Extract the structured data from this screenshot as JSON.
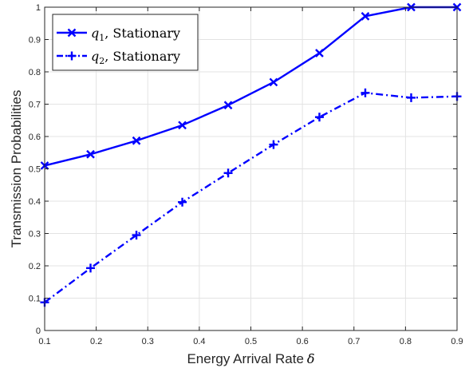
{
  "chart_data": {
    "type": "line",
    "xlabel": "Energy Arrival Rate",
    "xlabel_symbol": "δ",
    "ylabel": "Transmission Probabilities",
    "xlim": [
      0.1,
      0.9
    ],
    "ylim": [
      0,
      1
    ],
    "x_ticks": [
      "0.1",
      "0.2",
      "0.3",
      "0.4",
      "0.5",
      "0.6",
      "0.7",
      "0.8",
      "0.9"
    ],
    "y_ticks": [
      "0",
      "0.1",
      "0.2",
      "0.3",
      "0.4",
      "0.5",
      "0.6",
      "0.7",
      "0.8",
      "0.9",
      "1"
    ],
    "grid": true,
    "legend_position": "top-left",
    "x": [
      0.1,
      0.189,
      0.278,
      0.367,
      0.456,
      0.544,
      0.633,
      0.722,
      0.811,
      0.9
    ],
    "series": [
      {
        "name": "Stationary",
        "name_math_base": "q",
        "name_math_sub": "1",
        "color": "#0000ff",
        "line_style": "solid",
        "marker": "x",
        "values": [
          0.51,
          0.545,
          0.587,
          0.635,
          0.697,
          0.768,
          0.858,
          0.972,
          1.0,
          1.0
        ]
      },
      {
        "name": "Stationary",
        "name_math_base": "q",
        "name_math_sub": "2",
        "color": "#0000ff",
        "line_style": "dash-dot",
        "marker": "+",
        "values": [
          0.087,
          0.193,
          0.295,
          0.397,
          0.487,
          0.575,
          0.66,
          0.735,
          0.72,
          0.724
        ]
      }
    ]
  }
}
